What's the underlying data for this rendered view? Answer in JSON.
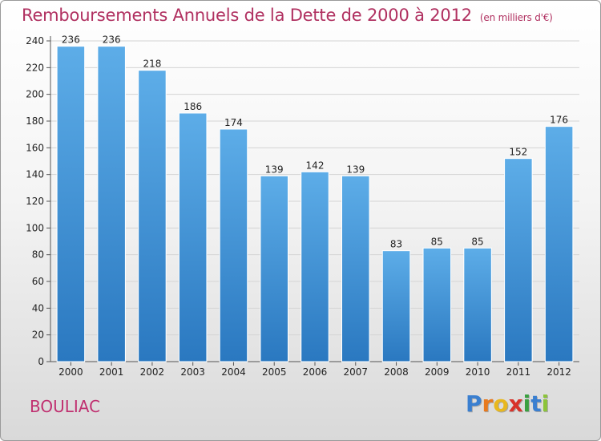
{
  "chart_data": {
    "type": "bar",
    "title": "Remboursements Annuels de la Dette de 2000 à 2012",
    "subtitle": "(en milliers d'€)",
    "categories": [
      "2000",
      "2001",
      "2002",
      "2003",
      "2004",
      "2005",
      "2006",
      "2007",
      "2008",
      "2009",
      "2010",
      "2011",
      "2012"
    ],
    "values": [
      236,
      236,
      218,
      186,
      174,
      139,
      142,
      139,
      83,
      85,
      85,
      152,
      176
    ],
    "ylim": [
      0,
      240
    ],
    "yticks": [
      0,
      20,
      40,
      60,
      80,
      100,
      120,
      140,
      160,
      180,
      200,
      220,
      240
    ],
    "grid": true,
    "legend": "none",
    "bar_color_top": "#5dade8",
    "bar_color_bottom": "#2a78c0"
  },
  "place_name": "BOULIAC",
  "logo": {
    "letters": [
      "P",
      "r",
      "o",
      "x",
      "i",
      "t",
      "i"
    ],
    "colors": [
      "#3a7fd0",
      "#e87a1e",
      "#e8b81e",
      "#d8332a",
      "#3aa040",
      "#3a7fd0",
      "#8cc43a"
    ]
  }
}
